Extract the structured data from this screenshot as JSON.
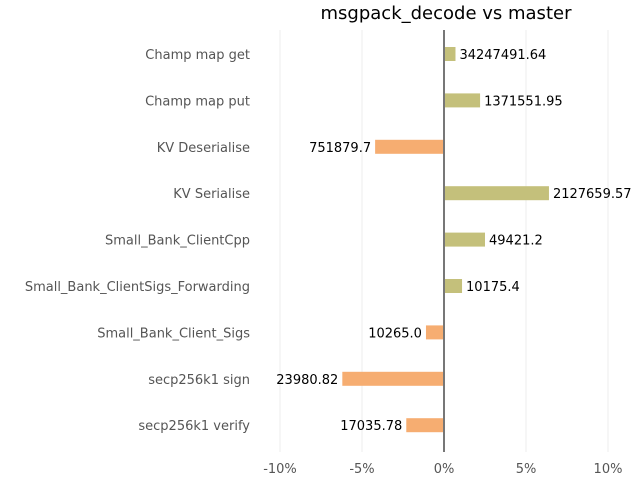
{
  "chart_data": {
    "type": "bar",
    "orientation": "horizontal",
    "title": "msgpack_decode vs master",
    "xlim": [
      -0.1,
      0.1
    ],
    "x_ticks": [
      -0.1,
      -0.05,
      0.0,
      0.05,
      0.1
    ],
    "x_tick_labels": [
      "-10%",
      "-5%",
      "0%",
      "5%",
      "10%"
    ],
    "grid": true,
    "colors": {
      "positive": "#c4c07b",
      "negative": "#f6ad71"
    },
    "categories": [
      "Champ map get",
      "Champ map put",
      "KV Deserialise",
      "KV Serialise",
      "Small_Bank_ClientCpp",
      "Small_Bank_ClientSigs_Forwarding",
      "Small_Bank_Client_Sigs",
      "secp256k1 sign",
      "secp256k1 verify"
    ],
    "values": [
      0.007,
      0.022,
      -0.042,
      0.064,
      0.025,
      0.011,
      -0.011,
      -0.062,
      -0.023
    ],
    "data_labels": [
      "34247491.64",
      "1371551.95",
      "751879.7",
      "2127659.57",
      "49421.2",
      "10175.4",
      "10265.0",
      "23980.82",
      "17035.78"
    ]
  }
}
